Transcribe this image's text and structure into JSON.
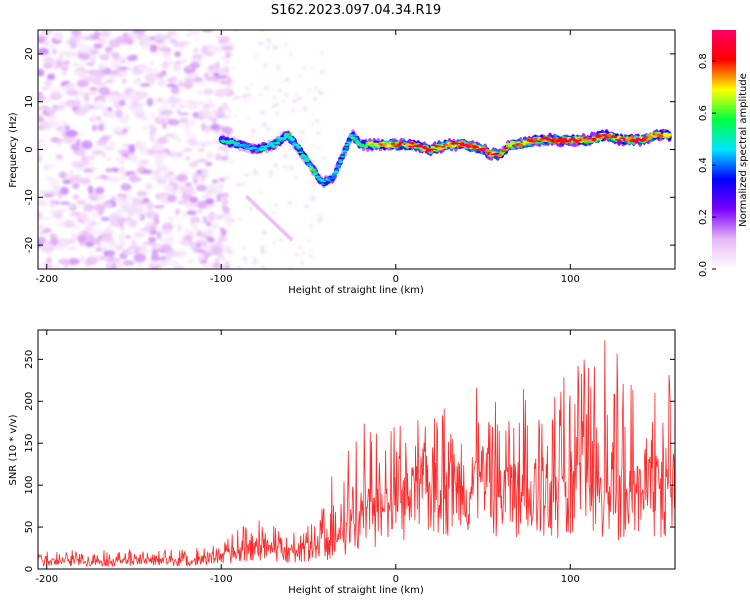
{
  "title": "S162.2023.097.04.34.R19",
  "chart_data": [
    {
      "type": "heatmap",
      "xlabel": "Height of straight line (km)",
      "ylabel": "Frequency (Hz)",
      "xlim": [
        -205,
        160
      ],
      "ylim": [
        -25,
        25
      ],
      "xticks": [
        -200,
        -100,
        0,
        100
      ],
      "yticks": [
        -20,
        -10,
        0,
        10,
        20
      ],
      "colorbar": {
        "label": "Normalized spectral amplitude",
        "range": [
          0,
          0.92
        ],
        "ticks": [
          "0.0",
          "0.2",
          "0.4",
          "0.6",
          "0.8"
        ],
        "colors": [
          "#ffffff",
          "#e6b8f5",
          "#7b00ff",
          "#0000ff",
          "#00e5ff",
          "#00ff40",
          "#ffff00",
          "#ff0000",
          "#ff0066"
        ]
      },
      "ridge": {
        "x": [
          -100,
          -90,
          -80,
          -70,
          -62,
          -55,
          -48,
          -42,
          -36,
          -30,
          -25,
          -20,
          -10,
          0,
          10,
          20,
          30,
          40,
          50,
          55,
          60,
          65,
          70,
          80,
          90,
          100,
          110,
          120,
          130,
          140,
          150,
          160
        ],
        "y": [
          2,
          1,
          0,
          1,
          3,
          0,
          -4,
          -7,
          -6,
          -1,
          3,
          1,
          1,
          1,
          1,
          0,
          1,
          1,
          0,
          -1,
          -1,
          1,
          1,
          2,
          2,
          2,
          2,
          3,
          2,
          2,
          3,
          3
        ],
        "amp": [
          0.5,
          0.5,
          0.45,
          0.5,
          0.55,
          0.5,
          0.6,
          0.5,
          0.45,
          0.5,
          0.55,
          0.6,
          0.75,
          0.8,
          0.8,
          0.85,
          0.8,
          0.85,
          0.9,
          0.85,
          0.8,
          0.75,
          0.8,
          0.85,
          0.9,
          0.85,
          0.85,
          0.9,
          0.85,
          0.85,
          0.8,
          0.8
        ]
      }
    },
    {
      "type": "line",
      "xlabel": "Height of straight line (km)",
      "ylabel": "SNR (10 * v/v)",
      "xlim": [
        -205,
        160
      ],
      "ylim": [
        0,
        285
      ],
      "xticks": [
        -200,
        -100,
        0,
        100
      ],
      "yticks": [
        0,
        50,
        100,
        150,
        200,
        250
      ],
      "color": "#ff2a2a",
      "envelope": {
        "x": [
          -205,
          -120,
          -100,
          -90,
          -80,
          -70,
          -60,
          -50,
          -40,
          -30,
          -20,
          -10,
          0,
          20,
          40,
          60,
          80,
          100,
          120,
          140,
          160
        ],
        "base": [
          8,
          9,
          12,
          20,
          25,
          22,
          18,
          22,
          25,
          35,
          55,
          65,
          75,
          90,
          100,
          95,
          90,
          85,
          80,
          90,
          95
        ],
        "peak": [
          22,
          25,
          30,
          50,
          60,
          55,
          45,
          55,
          90,
          160,
          180,
          165,
          170,
          185,
          210,
          230,
          240,
          245,
          275,
          240,
          230
        ]
      }
    }
  ]
}
